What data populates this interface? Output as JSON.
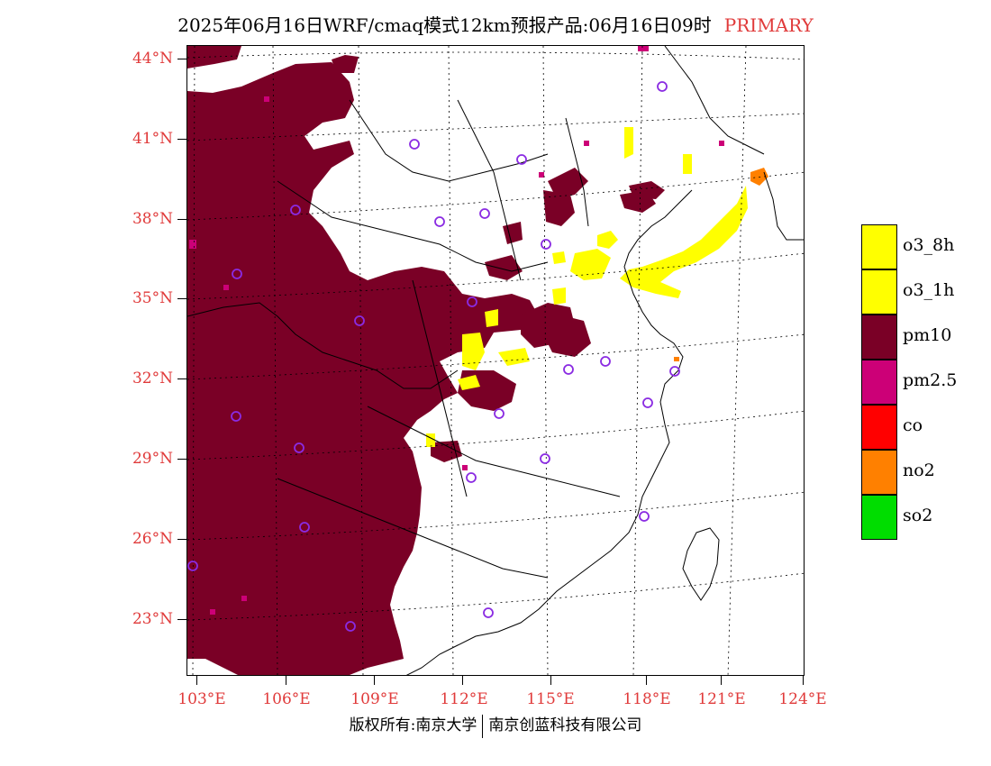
{
  "title": {
    "main": "2025年06月16日WRF/cmaq模式12km预报产品:06月16日09时",
    "tag": "PRIMARY"
  },
  "axes": {
    "lat_labels": [
      "44°N",
      "41°N",
      "38°N",
      "35°N",
      "32°N",
      "29°N",
      "26°N",
      "23°N"
    ],
    "lon_labels": [
      "103°E",
      "106°E",
      "109°E",
      "112°E",
      "115°E",
      "118°E",
      "121°E",
      "124°E"
    ]
  },
  "legend": [
    {
      "label": "o3_8h",
      "color": "#ffff00"
    },
    {
      "label": "o3_1h",
      "color": "#ffff00"
    },
    {
      "label": "pm10",
      "color": "#7a0026"
    },
    {
      "label": "pm2.5",
      "color": "#cc0077"
    },
    {
      "label": "co",
      "color": "#ff0000"
    },
    {
      "label": "no2",
      "color": "#ff8000"
    },
    {
      "label": "so2",
      "color": "#00dd00"
    }
  ],
  "footer": {
    "left": "版权所有:南京大学",
    "right": "南京创蓝科技有限公司"
  }
}
